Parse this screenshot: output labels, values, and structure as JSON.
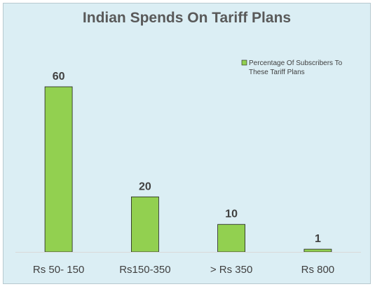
{
  "chart_data": {
    "type": "bar",
    "title": "Indian Spends On Tariff Plans",
    "categories": [
      "Rs 50- 150",
      "Rs150-350",
      "> Rs 350",
      "Rs 800"
    ],
    "series": [
      {
        "name": "Percentage Of Subscribers To These Tariff Plans",
        "values": [
          60,
          20,
          10,
          1
        ]
      }
    ],
    "xlabel": "",
    "ylabel": "",
    "ylim": [
      0,
      60
    ],
    "grid": false,
    "legend_position": "top-right",
    "colors": {
      "bar_fill": "#92d050",
      "bar_stroke": "#1f1f1f",
      "background": "#dbeef4",
      "text": "#404040",
      "title": "#595959"
    }
  }
}
